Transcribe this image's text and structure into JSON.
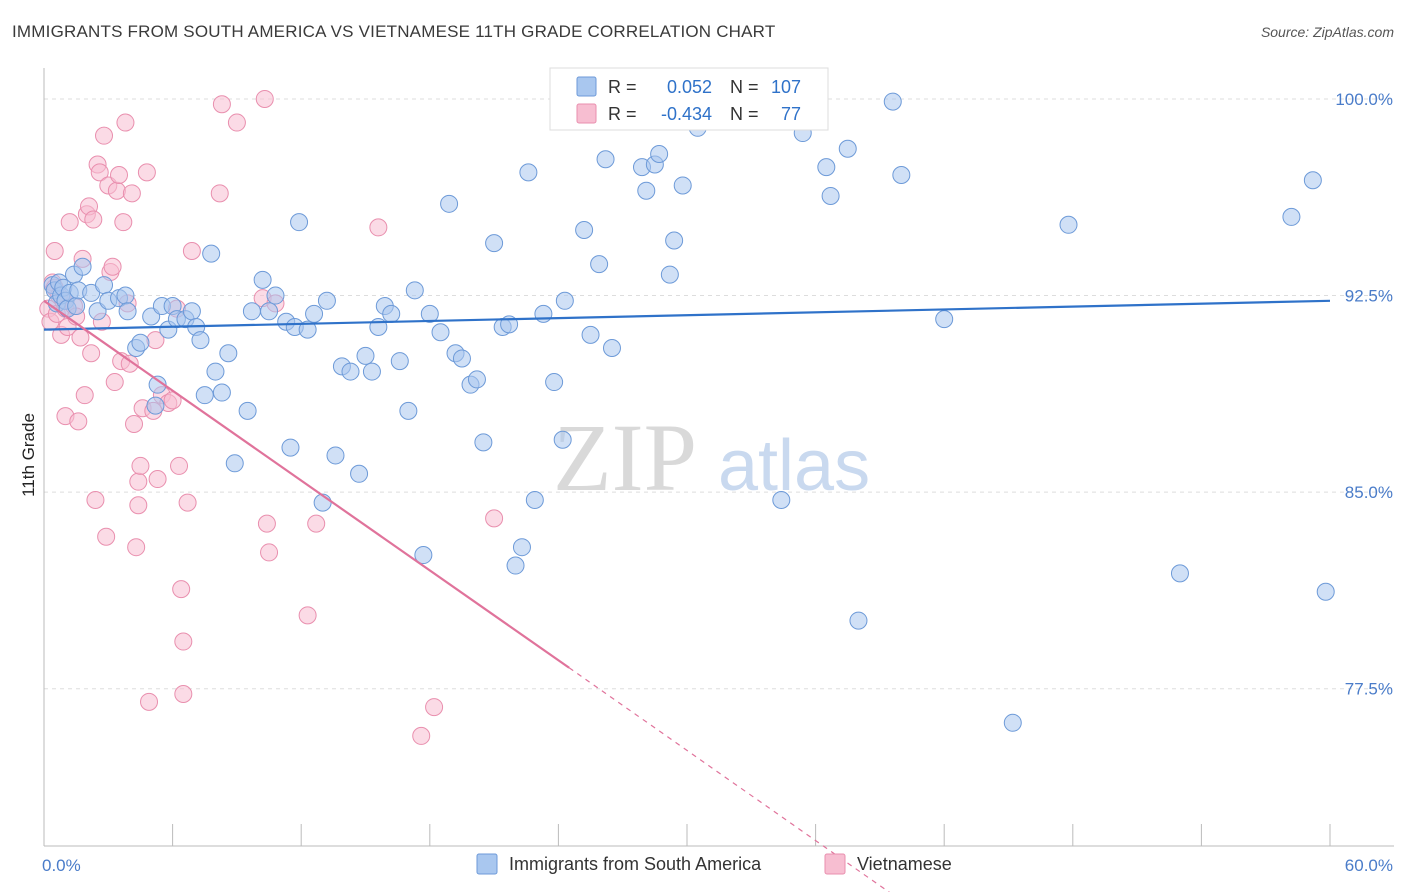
{
  "title": "IMMIGRANTS FROM SOUTH AMERICA VS VIETNAMESE 11TH GRADE CORRELATION CHART",
  "source": "Source: ZipAtlas.com",
  "watermark": {
    "zip": "ZIP",
    "atlas": "atlas"
  },
  "colors": {
    "blue_fill": "#a9c7ef",
    "blue_stroke": "#6d9ad8",
    "blue_line": "#2f72c9",
    "pink_fill": "#f7bed1",
    "pink_stroke": "#e98fae",
    "pink_line": "#e0739b",
    "axis_label": "#4a7cc9",
    "grid": "#dddddd"
  },
  "chart_data": {
    "type": "scatter",
    "xlabel": "",
    "ylabel": "11th Grade",
    "xlim": [
      0,
      60
    ],
    "ylim": [
      71.5,
      100.8
    ],
    "x_tick_labels": [
      {
        "value": 0,
        "label": "0.0%"
      },
      {
        "value": 60,
        "label": "60.0%"
      }
    ],
    "x_minor_ticks": [
      0,
      6,
      12,
      18,
      24,
      30,
      36,
      42,
      48,
      54,
      60
    ],
    "y_ticks": [
      {
        "value": 100.0,
        "label": "100.0%"
      },
      {
        "value": 92.5,
        "label": "92.5%"
      },
      {
        "value": 85.0,
        "label": "85.0%"
      },
      {
        "value": 77.5,
        "label": "77.5%"
      }
    ],
    "legend": {
      "position": "top-center",
      "rows": [
        {
          "r_label": "R =",
          "r_value": "0.052",
          "n_label": "N =",
          "n_value": "107"
        },
        {
          "r_label": "R =",
          "r_value": "-0.434",
          "n_label": "N =",
          "n_value": "77"
        }
      ]
    },
    "series": [
      {
        "name": "Immigrants from South America",
        "color": "blue",
        "n": 107,
        "r": 0.052,
        "trend": {
          "x": [
            0,
            60
          ],
          "y": [
            91.2,
            92.3
          ],
          "style": "solid"
        },
        "points": [
          [
            0.4,
            92.9
          ],
          [
            0.5,
            92.7
          ],
          [
            0.6,
            92.2
          ],
          [
            0.7,
            93.0
          ],
          [
            0.8,
            92.5
          ],
          [
            0.9,
            92.8
          ],
          [
            1.0,
            92.3
          ],
          [
            1.1,
            92.0
          ],
          [
            1.2,
            92.6
          ],
          [
            1.4,
            93.3
          ],
          [
            1.5,
            92.1
          ],
          [
            1.6,
            92.7
          ],
          [
            1.8,
            93.6
          ],
          [
            2.2,
            92.6
          ],
          [
            2.5,
            91.9
          ],
          [
            2.8,
            92.9
          ],
          [
            3.0,
            92.3
          ],
          [
            3.5,
            92.4
          ],
          [
            3.8,
            92.5
          ],
          [
            3.9,
            91.9
          ],
          [
            4.3,
            90.5
          ],
          [
            4.5,
            90.7
          ],
          [
            5.0,
            91.7
          ],
          [
            5.2,
            88.3
          ],
          [
            5.3,
            89.1
          ],
          [
            5.5,
            92.1
          ],
          [
            5.8,
            91.2
          ],
          [
            6.0,
            92.1
          ],
          [
            6.2,
            91.6
          ],
          [
            6.6,
            91.6
          ],
          [
            6.9,
            91.9
          ],
          [
            7.1,
            91.3
          ],
          [
            7.3,
            90.8
          ],
          [
            7.5,
            88.7
          ],
          [
            7.8,
            94.1
          ],
          [
            8.0,
            89.6
          ],
          [
            8.3,
            88.8
          ],
          [
            8.6,
            90.3
          ],
          [
            8.9,
            86.1
          ],
          [
            9.5,
            88.1
          ],
          [
            9.7,
            91.9
          ],
          [
            10.2,
            93.1
          ],
          [
            10.5,
            91.9
          ],
          [
            10.8,
            92.5
          ],
          [
            11.3,
            91.5
          ],
          [
            11.5,
            86.7
          ],
          [
            11.7,
            91.3
          ],
          [
            11.9,
            95.3
          ],
          [
            12.3,
            91.2
          ],
          [
            12.6,
            91.8
          ],
          [
            13.0,
            84.6
          ],
          [
            13.2,
            92.3
          ],
          [
            13.6,
            86.4
          ],
          [
            13.9,
            89.8
          ],
          [
            14.3,
            89.6
          ],
          [
            14.7,
            85.7
          ],
          [
            15.0,
            90.2
          ],
          [
            15.3,
            89.6
          ],
          [
            15.6,
            91.3
          ],
          [
            15.9,
            92.1
          ],
          [
            16.2,
            91.8
          ],
          [
            16.6,
            90.0
          ],
          [
            17.0,
            88.1
          ],
          [
            17.3,
            92.7
          ],
          [
            17.7,
            82.6
          ],
          [
            18.0,
            91.8
          ],
          [
            18.5,
            91.1
          ],
          [
            18.9,
            96.0
          ],
          [
            19.2,
            90.3
          ],
          [
            19.5,
            90.1
          ],
          [
            19.9,
            89.1
          ],
          [
            20.2,
            89.3
          ],
          [
            20.5,
            86.9
          ],
          [
            21.0,
            94.5
          ],
          [
            21.4,
            91.3
          ],
          [
            21.7,
            91.4
          ],
          [
            22.0,
            82.2
          ],
          [
            22.3,
            82.9
          ],
          [
            22.6,
            97.2
          ],
          [
            22.9,
            84.7
          ],
          [
            23.3,
            91.8
          ],
          [
            23.8,
            89.2
          ],
          [
            24.2,
            87.0
          ],
          [
            24.3,
            92.3
          ],
          [
            24.5,
            100.0
          ],
          [
            24.8,
            99.5
          ],
          [
            25.2,
            95.0
          ],
          [
            25.5,
            91.0
          ],
          [
            25.9,
            93.7
          ],
          [
            26.2,
            97.7
          ],
          [
            26.5,
            90.5
          ],
          [
            27.2,
            99.3
          ],
          [
            27.9,
            97.4
          ],
          [
            28.1,
            96.5
          ],
          [
            28.5,
            97.5
          ],
          [
            28.7,
            97.9
          ],
          [
            29.2,
            93.3
          ],
          [
            29.4,
            94.6
          ],
          [
            29.8,
            96.7
          ],
          [
            30.5,
            98.9
          ],
          [
            32.5,
            99.4
          ],
          [
            34.4,
            84.7
          ],
          [
            35.4,
            98.7
          ],
          [
            36.5,
            97.4
          ],
          [
            36.7,
            96.3
          ],
          [
            37.5,
            98.1
          ],
          [
            38.0,
            80.1
          ],
          [
            39.6,
            99.9
          ],
          [
            40.0,
            97.1
          ],
          [
            42.0,
            91.6
          ],
          [
            45.2,
            76.2
          ],
          [
            47.8,
            95.2
          ],
          [
            53.0,
            81.9
          ],
          [
            58.2,
            95.5
          ],
          [
            59.2,
            96.9
          ],
          [
            59.8,
            81.2
          ]
        ]
      },
      {
        "name": "Vietnamese",
        "color": "pink",
        "n": 77,
        "r": -0.434,
        "trend": {
          "x": [
            0,
            24.5
          ],
          "y": [
            92.3,
            78.3
          ],
          "style": "solid",
          "dashed_extension_to": [
            39.5,
            69.7
          ]
        },
        "points": [
          [
            0.2,
            92.0
          ],
          [
            0.3,
            91.5
          ],
          [
            0.4,
            93.0
          ],
          [
            0.5,
            92.8
          ],
          [
            0.5,
            94.2
          ],
          [
            0.6,
            91.8
          ],
          [
            0.7,
            92.5
          ],
          [
            0.8,
            91.0
          ],
          [
            0.9,
            92.3
          ],
          [
            1.0,
            92.0
          ],
          [
            1.0,
            87.9
          ],
          [
            1.1,
            91.3
          ],
          [
            1.2,
            95.3
          ],
          [
            1.4,
            92.1
          ],
          [
            1.5,
            91.7
          ],
          [
            1.6,
            87.7
          ],
          [
            1.7,
            90.9
          ],
          [
            1.8,
            93.9
          ],
          [
            1.9,
            88.7
          ],
          [
            2.0,
            95.6
          ],
          [
            2.1,
            95.9
          ],
          [
            2.2,
            90.3
          ],
          [
            2.3,
            95.4
          ],
          [
            2.4,
            84.7
          ],
          [
            2.5,
            97.5
          ],
          [
            2.6,
            97.2
          ],
          [
            2.7,
            91.5
          ],
          [
            2.8,
            98.6
          ],
          [
            2.9,
            83.3
          ],
          [
            3.0,
            96.7
          ],
          [
            3.1,
            93.4
          ],
          [
            3.2,
            93.6
          ],
          [
            3.3,
            89.2
          ],
          [
            3.4,
            96.5
          ],
          [
            3.5,
            97.1
          ],
          [
            3.6,
            90.0
          ],
          [
            3.7,
            95.3
          ],
          [
            3.8,
            99.1
          ],
          [
            3.9,
            92.2
          ],
          [
            4.0,
            89.9
          ],
          [
            4.1,
            96.4
          ],
          [
            4.2,
            87.6
          ],
          [
            4.3,
            82.9
          ],
          [
            4.4,
            84.5
          ],
          [
            4.4,
            85.4
          ],
          [
            4.5,
            86.0
          ],
          [
            4.6,
            88.2
          ],
          [
            4.8,
            97.2
          ],
          [
            4.9,
            77.0
          ],
          [
            5.1,
            88.1
          ],
          [
            5.2,
            90.8
          ],
          [
            5.3,
            85.5
          ],
          [
            5.5,
            88.7
          ],
          [
            5.8,
            88.4
          ],
          [
            6.0,
            88.5
          ],
          [
            6.2,
            92.0
          ],
          [
            6.3,
            86.0
          ],
          [
            6.4,
            81.3
          ],
          [
            6.5,
            77.3
          ],
          [
            6.5,
            79.3
          ],
          [
            6.7,
            84.6
          ],
          [
            6.9,
            94.2
          ],
          [
            8.2,
            96.4
          ],
          [
            8.3,
            99.8
          ],
          [
            9.0,
            99.1
          ],
          [
            10.2,
            92.4
          ],
          [
            10.3,
            100.0
          ],
          [
            10.4,
            83.8
          ],
          [
            10.5,
            82.7
          ],
          [
            10.8,
            92.2
          ],
          [
            12.3,
            80.3
          ],
          [
            12.7,
            83.8
          ],
          [
            15.6,
            95.1
          ],
          [
            17.6,
            75.7
          ],
          [
            18.2,
            76.8
          ],
          [
            21.0,
            84.0
          ],
          [
            24.3,
            99.5
          ]
        ]
      }
    ]
  },
  "bottom_legend": [
    {
      "label": "Immigrants from South America",
      "color": "blue"
    },
    {
      "label": "Vietnamese",
      "color": "pink"
    }
  ]
}
